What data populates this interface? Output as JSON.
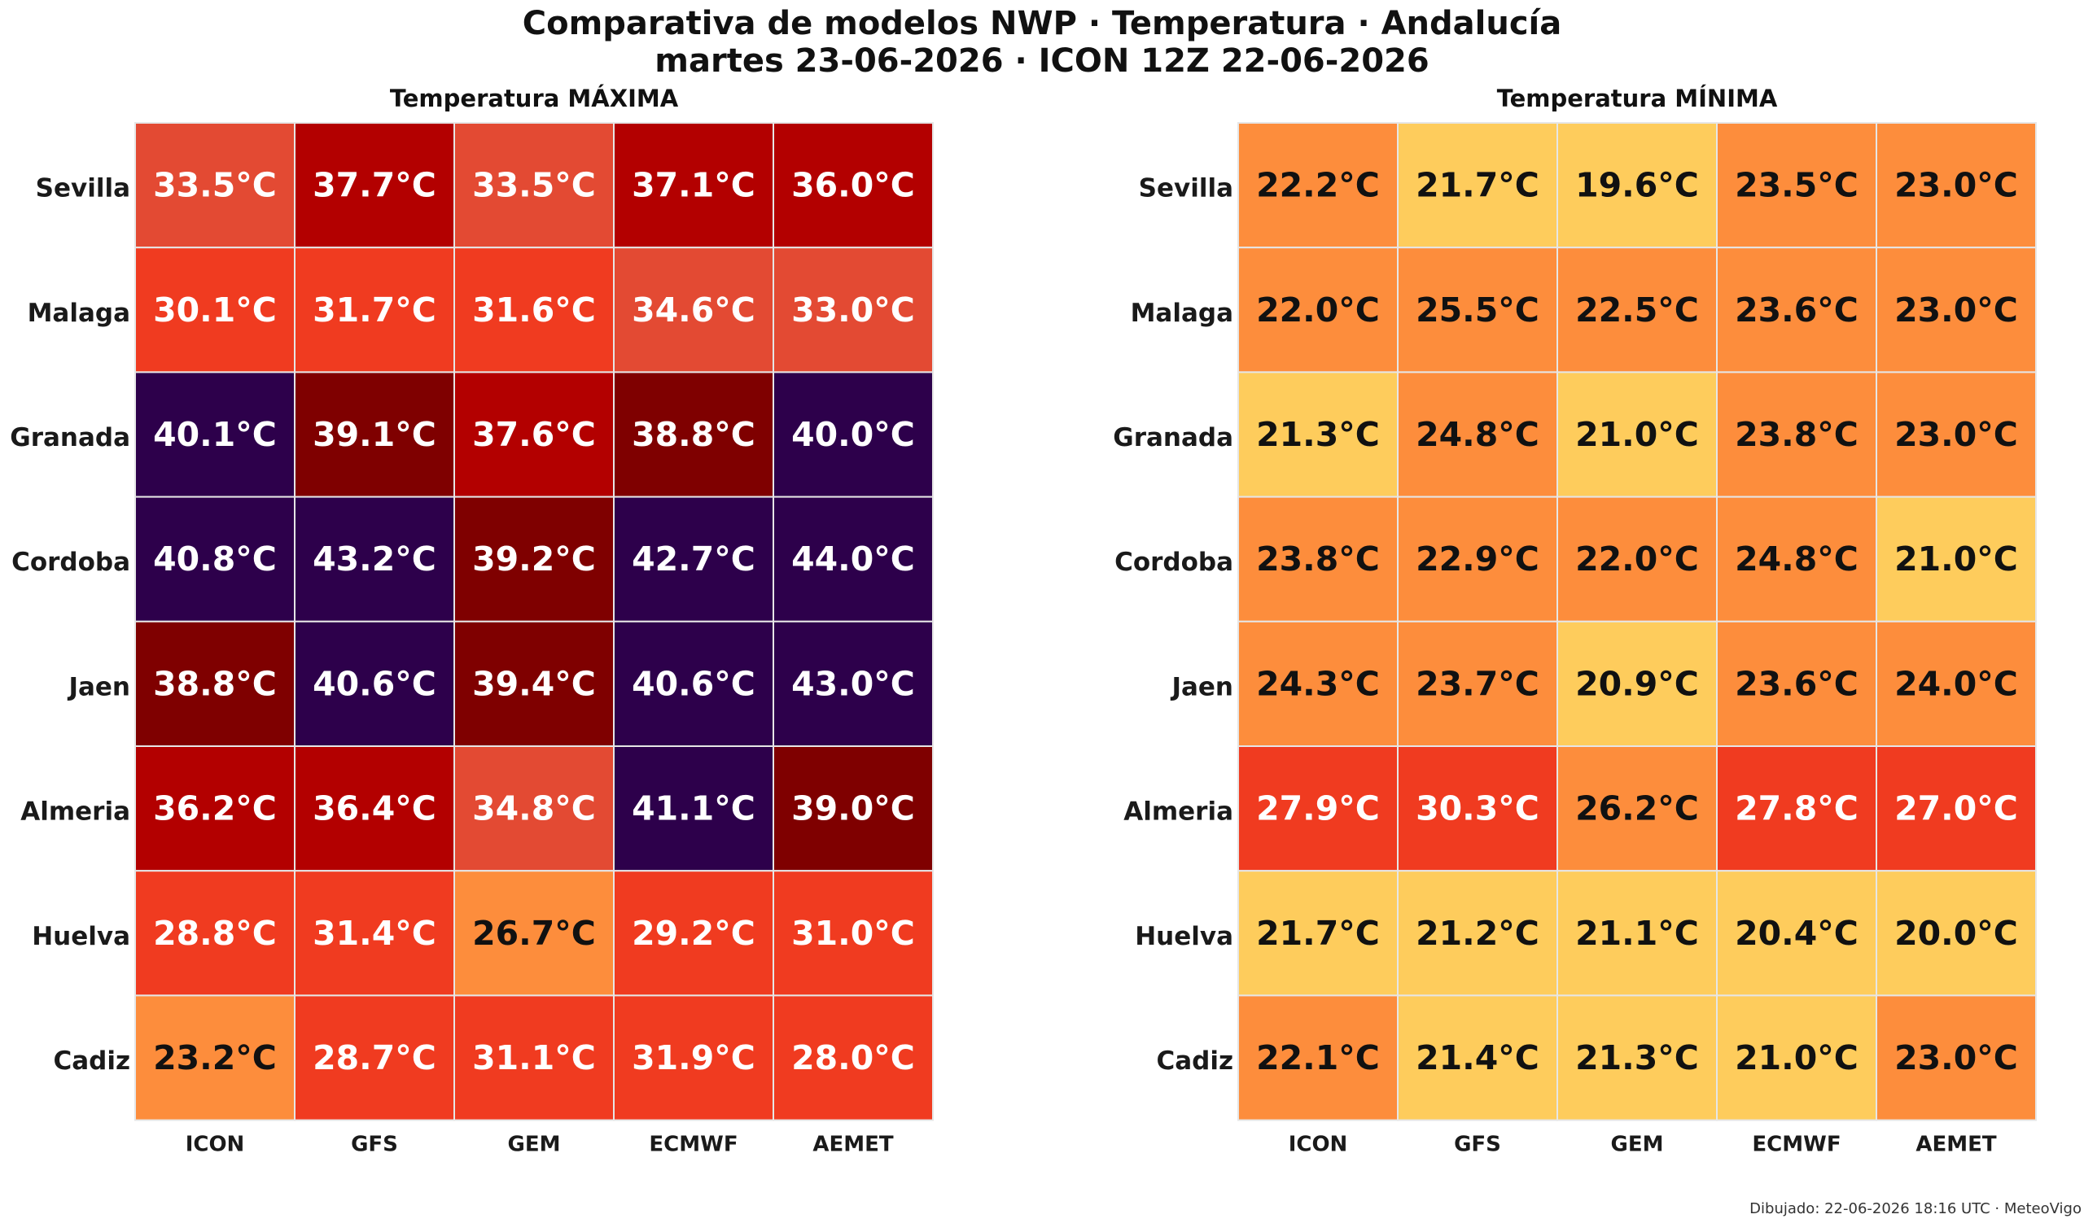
{
  "title": "Comparativa de modelos NWP · Temperatura · Andalucía",
  "subtitle": "martes 23-06-2026  ·  ICON 12Z 22-06-2026",
  "footer": "Dibujado: 22-06-2026 18:16 UTC · MeteoVigo",
  "chart_data": [
    {
      "type": "heatmap",
      "title": "Temperatura MÁXIMA",
      "unit": "°C",
      "rows": [
        "Sevilla",
        "Malaga",
        "Granada",
        "Cordoba",
        "Jaen",
        "Almeria",
        "Huelva",
        "Cadiz"
      ],
      "columns": [
        "ICON",
        "GFS",
        "GEM",
        "ECMWF",
        "AEMET"
      ],
      "values": [
        [
          33.5,
          37.7,
          33.5,
          37.1,
          36.0
        ],
        [
          30.1,
          31.7,
          31.6,
          34.6,
          33.0
        ],
        [
          40.1,
          39.1,
          37.6,
          38.8,
          40.0
        ],
        [
          40.8,
          43.2,
          39.2,
          42.7,
          44.0
        ],
        [
          38.8,
          40.6,
          39.4,
          40.6,
          43.0
        ],
        [
          36.2,
          36.4,
          34.8,
          41.1,
          39.0
        ],
        [
          28.8,
          31.4,
          26.7,
          29.2,
          31.0
        ],
        [
          23.2,
          28.7,
          31.1,
          31.9,
          28.0
        ]
      ],
      "color_scale": [
        {
          "min": -100,
          "max": 28,
          "color": "#fd8d3c"
        },
        {
          "min": 28,
          "max": 33,
          "color": "#f03b20"
        },
        {
          "min": 33,
          "max": 35,
          "color": "#e34a33"
        },
        {
          "min": 35,
          "max": 38,
          "color": "#b30000"
        },
        {
          "min": 38,
          "max": 40,
          "color": "#7f0000"
        },
        {
          "min": 40,
          "max": 100,
          "color": "#2d004b"
        }
      ],
      "dark_text_color": "#111111",
      "light_text_color": "#ffffff",
      "dark_text_below": 28
    },
    {
      "type": "heatmap",
      "title": "Temperatura MÍNIMA",
      "unit": "°C",
      "rows": [
        "Sevilla",
        "Malaga",
        "Granada",
        "Cordoba",
        "Jaen",
        "Almeria",
        "Huelva",
        "Cadiz"
      ],
      "columns": [
        "ICON",
        "GFS",
        "GEM",
        "ECMWF",
        "AEMET"
      ],
      "values": [
        [
          22.2,
          21.7,
          19.6,
          23.5,
          23.0
        ],
        [
          22.0,
          25.5,
          22.5,
          23.6,
          23.0
        ],
        [
          21.3,
          24.8,
          21.0,
          23.8,
          23.0
        ],
        [
          23.8,
          22.9,
          22.0,
          24.8,
          21.0
        ],
        [
          24.3,
          23.7,
          20.9,
          23.6,
          24.0
        ],
        [
          27.9,
          30.3,
          26.2,
          27.8,
          27.0
        ],
        [
          21.7,
          21.2,
          21.1,
          20.4,
          20.0
        ],
        [
          22.1,
          21.4,
          21.3,
          21.0,
          23.0
        ]
      ],
      "color_scale": [
        {
          "min": -100,
          "max": 22,
          "color": "#fecc5c"
        },
        {
          "min": 22,
          "max": 27,
          "color": "#fd8d3c"
        },
        {
          "min": 27,
          "max": 100,
          "color": "#f03b20"
        }
      ],
      "dark_text_color": "#111111",
      "light_text_color": "#ffffff",
      "dark_text_below": 27
    }
  ]
}
